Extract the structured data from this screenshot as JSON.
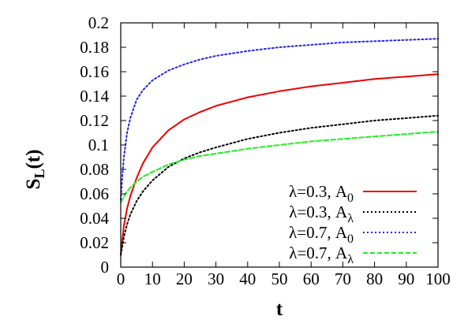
{
  "chart_data": {
    "type": "line",
    "xlabel": "t",
    "ylabel_main": "S",
    "ylabel_sub": "L",
    "ylabel_arg": "(t)",
    "xlim": [
      0,
      100
    ],
    "ylim": [
      0,
      0.2
    ],
    "xticks": [
      "0",
      "10",
      "20",
      "30",
      "40",
      "50",
      "60",
      "70",
      "80",
      "90",
      "100"
    ],
    "xtick_values": [
      0,
      10,
      20,
      30,
      40,
      50,
      60,
      70,
      80,
      90,
      100
    ],
    "yticks": [
      "0",
      "0.02",
      "0.04",
      "0.06",
      "0.08",
      "0.1",
      "0.12",
      "0.14",
      "0.16",
      "0.18",
      "0.2"
    ],
    "ytick_values": [
      0,
      0.02,
      0.04,
      0.06,
      0.08,
      0.1,
      0.12,
      0.14,
      0.16,
      0.18,
      0.2
    ],
    "grid": false,
    "legend_position": "bottom-right",
    "series": [
      {
        "legend_main": "λ=0.3, A",
        "legend_sub": "0",
        "color": "#ee0000",
        "dash": "solid",
        "x": [
          0,
          1,
          2,
          3,
          5,
          7,
          10,
          15,
          20,
          25,
          30,
          40,
          50,
          60,
          70,
          80,
          90,
          100
        ],
        "y": [
          0.01,
          0.034,
          0.048,
          0.058,
          0.073,
          0.085,
          0.098,
          0.112,
          0.121,
          0.127,
          0.132,
          0.139,
          0.144,
          0.148,
          0.151,
          0.154,
          0.156,
          0.158
        ]
      },
      {
        "legend_main": "λ=0.3, A",
        "legend_sub": "λ",
        "color": "#000000",
        "dash": "dotted",
        "x": [
          0,
          1,
          2,
          3,
          5,
          7,
          10,
          15,
          20,
          25,
          30,
          40,
          50,
          60,
          70,
          80,
          90,
          100
        ],
        "y": [
          0.01,
          0.025,
          0.035,
          0.043,
          0.054,
          0.062,
          0.071,
          0.082,
          0.089,
          0.094,
          0.098,
          0.105,
          0.11,
          0.114,
          0.117,
          0.12,
          0.122,
          0.124
        ]
      },
      {
        "legend_main": "λ=0.7, A",
        "legend_sub": "0",
        "color": "#2222ee",
        "dash": "dotted",
        "x": [
          0,
          0.5,
          1,
          2,
          3,
          5,
          7,
          10,
          15,
          20,
          25,
          30,
          40,
          50,
          60,
          70,
          80,
          90,
          100
        ],
        "y": [
          0.055,
          0.075,
          0.09,
          0.11,
          0.122,
          0.137,
          0.145,
          0.153,
          0.161,
          0.166,
          0.17,
          0.173,
          0.177,
          0.18,
          0.182,
          0.184,
          0.185,
          0.186,
          0.187
        ]
      },
      {
        "legend_main": "λ=0.7, A",
        "legend_sub": "λ",
        "color": "#22ee22",
        "dash": "dashed",
        "x": [
          0,
          1,
          2,
          3,
          5,
          7,
          10,
          15,
          20,
          25,
          30,
          40,
          50,
          60,
          70,
          80,
          90,
          100
        ],
        "y": [
          0.053,
          0.058,
          0.062,
          0.065,
          0.07,
          0.074,
          0.078,
          0.084,
          0.088,
          0.091,
          0.093,
          0.097,
          0.1,
          0.103,
          0.105,
          0.107,
          0.109,
          0.111
        ]
      }
    ]
  }
}
